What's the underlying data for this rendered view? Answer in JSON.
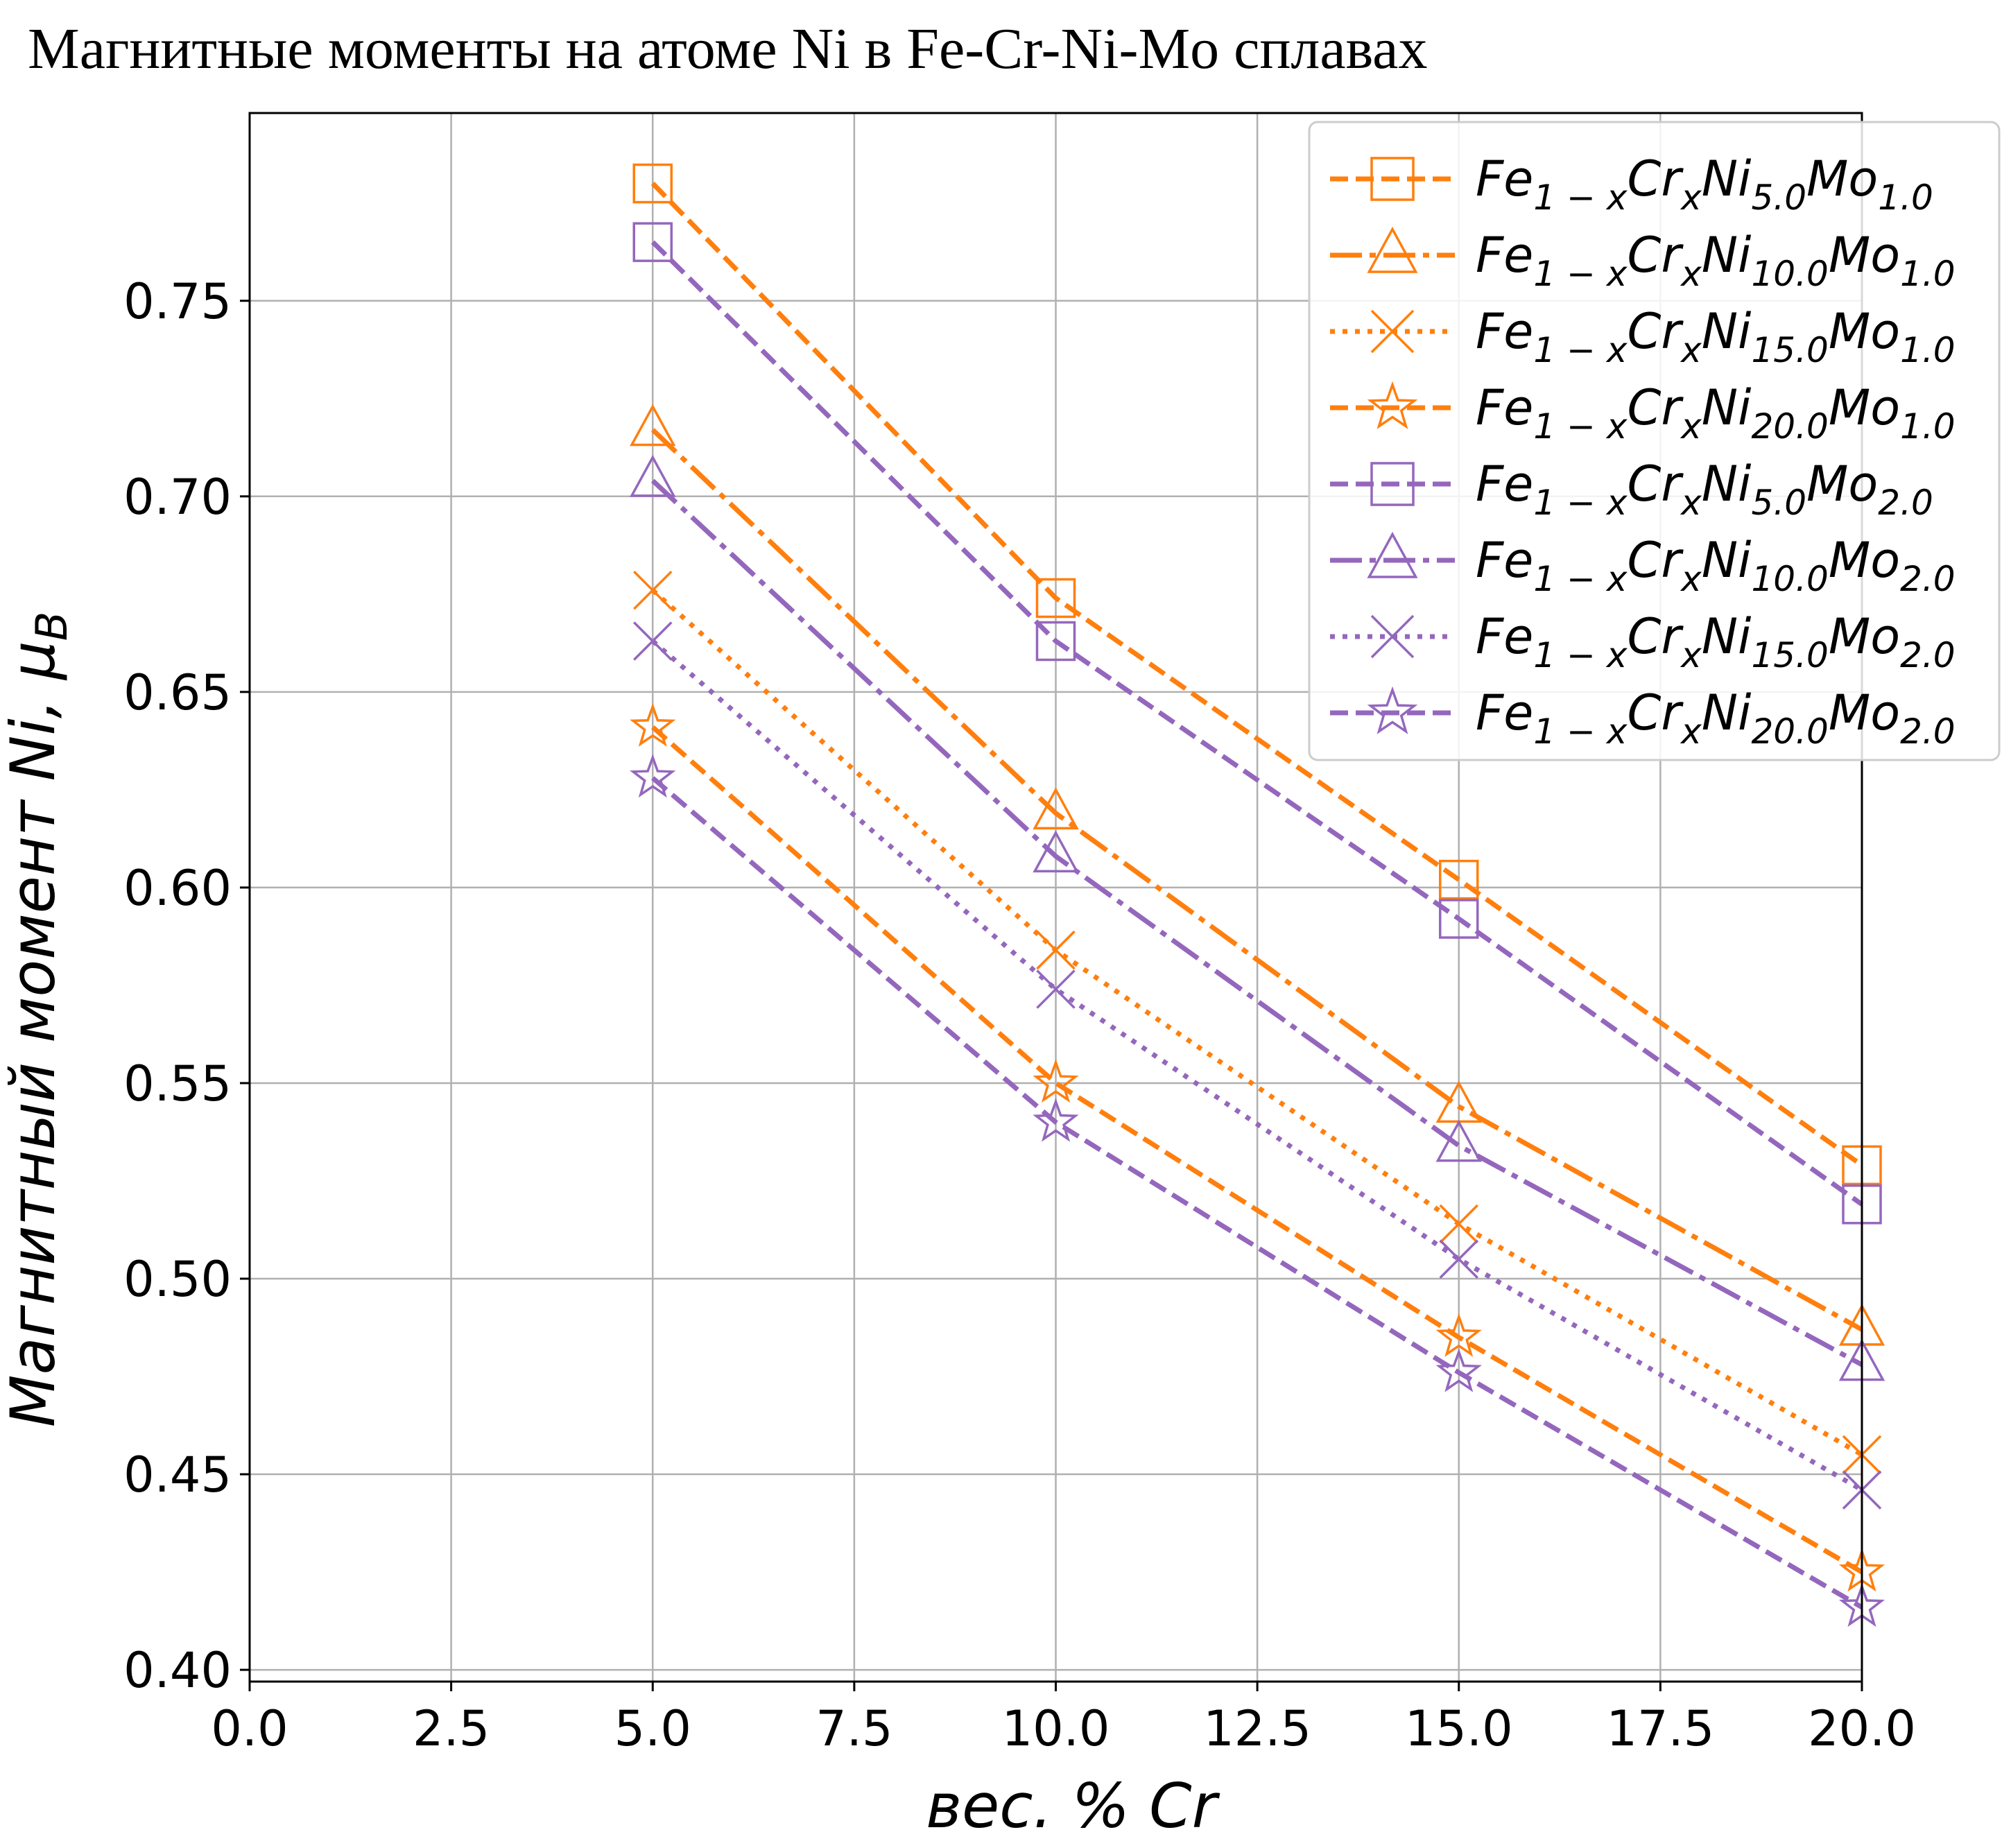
{
  "chart_data": {
    "type": "line",
    "title": "Магнитные моменты на атоме Ni в Fe-Cr-Ni-Mo сплавах",
    "xlabel": "вес. % Cr",
    "ylabel_main": "Магнитный момент Ni, ",
    "ylabel_unit": "μ",
    "ylabel_unit_sub": "B",
    "xlim": [
      0,
      20
    ],
    "ylim": [
      0.397,
      0.798
    ],
    "xticks": [
      "0.0",
      "2.5",
      "5.0",
      "7.5",
      "10.0",
      "12.5",
      "15.0",
      "17.5",
      "20.0"
    ],
    "yticks": [
      "0.40",
      "0.45",
      "0.50",
      "0.55",
      "0.60",
      "0.65",
      "0.70",
      "0.75"
    ],
    "grid": true,
    "legend_position": "top-right",
    "x": [
      5,
      10,
      15,
      20
    ],
    "series": [
      {
        "name": "Fe1−xCrxNi5.0Mo1.0",
        "ni": "5.0",
        "mo": "1.0",
        "color": "#ff7f0e",
        "marker": "square",
        "dash": "dashed",
        "values": [
          0.78,
          0.674,
          0.602,
          0.529
        ]
      },
      {
        "name": "Fe1−xCrxNi10.0Mo1.0",
        "ni": "10.0",
        "mo": "1.0",
        "color": "#ff7f0e",
        "marker": "triangle",
        "dash": "dashdot",
        "values": [
          0.717,
          0.619,
          0.544,
          0.487
        ]
      },
      {
        "name": "Fe1−xCrxNi15.0Mo1.0",
        "ni": "15.0",
        "mo": "1.0",
        "color": "#ff7f0e",
        "marker": "x",
        "dash": "dotted",
        "values": [
          0.676,
          0.584,
          0.514,
          0.455
        ]
      },
      {
        "name": "Fe1−xCrxNi20.0Mo1.0",
        "ni": "20.0",
        "mo": "1.0",
        "color": "#ff7f0e",
        "marker": "star",
        "dash": "dashed",
        "values": [
          0.641,
          0.55,
          0.485,
          0.425
        ]
      },
      {
        "name": "Fe1−xCrxNi5.0Mo2.0",
        "ni": "5.0",
        "mo": "2.0",
        "color": "#9467bd",
        "marker": "square",
        "dash": "dashed",
        "values": [
          0.765,
          0.663,
          0.592,
          0.519
        ]
      },
      {
        "name": "Fe1−xCrxNi10.0Mo2.0",
        "ni": "10.0",
        "mo": "2.0",
        "color": "#9467bd",
        "marker": "triangle",
        "dash": "dashdot",
        "values": [
          0.704,
          0.608,
          0.534,
          0.478
        ]
      },
      {
        "name": "Fe1−xCrxNi15.0Mo2.0",
        "ni": "15.0",
        "mo": "2.0",
        "color": "#9467bd",
        "marker": "x",
        "dash": "dotted",
        "values": [
          0.663,
          0.574,
          0.505,
          0.446
        ]
      },
      {
        "name": "Fe1−xCrxNi20.0Mo2.0",
        "ni": "20.0",
        "mo": "2.0",
        "color": "#9467bd",
        "marker": "star",
        "dash": "dashed",
        "values": [
          0.628,
          0.54,
          0.476,
          0.416
        ]
      }
    ],
    "legend_text": {
      "fe": "Fe",
      "sub1": "1 − x",
      "cr": "Cr",
      "subx": "x",
      "ni": "Ni",
      "mo": "Mo"
    }
  }
}
